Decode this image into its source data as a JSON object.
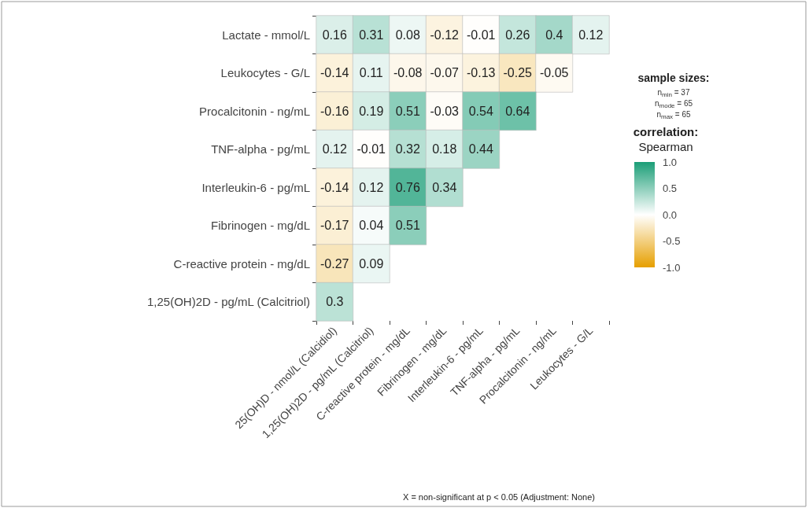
{
  "chart_data": {
    "type": "heatmap",
    "categories": [
      "25(OH)D - nmol/L (Calcidiol)",
      "1,25(OH)2D - pg/mL (Calcitriol)",
      "C-reactive protein - mg/dL",
      "Fibrinogen - mg/dL",
      "Interleukin-6 - pg/mL",
      "TNF-alpha - pg/mL",
      "Procalcitonin - ng/mL",
      "Leukocytes - G/L"
    ],
    "y_categories": [
      "Lactate - mmol/L",
      "Leukocytes - G/L",
      "Procalcitonin - ng/mL",
      "TNF-alpha - pg/mL",
      "Interleukin-6 - pg/mL",
      "Fibrinogen - mg/dL",
      "C-reactive protein - mg/dL",
      "1,25(OH)2D - pg/mL (Calcitriol)"
    ],
    "cells": [
      [
        0.16,
        0.31,
        0.08,
        -0.12,
        -0.01,
        0.26,
        0.4,
        0.12
      ],
      [
        -0.14,
        0.11,
        -0.08,
        -0.07,
        -0.13,
        -0.25,
        -0.05,
        null
      ],
      [
        -0.16,
        0.19,
        0.51,
        -0.03,
        0.54,
        0.64,
        null,
        null
      ],
      [
        0.12,
        -0.01,
        0.32,
        0.18,
        0.44,
        null,
        null,
        null
      ],
      [
        -0.14,
        0.12,
        0.76,
        0.34,
        null,
        null,
        null,
        null
      ],
      [
        -0.17,
        0.04,
        0.51,
        null,
        null,
        null,
        null,
        null
      ],
      [
        -0.27,
        0.09,
        null,
        null,
        null,
        null,
        null,
        null
      ],
      [
        0.3,
        null,
        null,
        null,
        null,
        null,
        null,
        null
      ]
    ],
    "data_labels": true,
    "clim": [
      -1,
      1
    ],
    "cticks": [
      {
        "value": -1,
        "label": "-1.0"
      },
      -0.5,
      {
        "value": 0,
        "label": "0.0"
      },
      0.5,
      {
        "value": 1,
        "label": "1.0"
      }
    ],
    "legend_title": "sample sizes:",
    "clabel": "correlation:\nSpearman",
    "annotations": [
      "n$_{min}$ = 37",
      "n$_{mode}$ = 65",
      "n$_{max}$ = 65",
      "X = non-significant at p < 0.05 (Adjustment: None)"
    ]
  }
}
